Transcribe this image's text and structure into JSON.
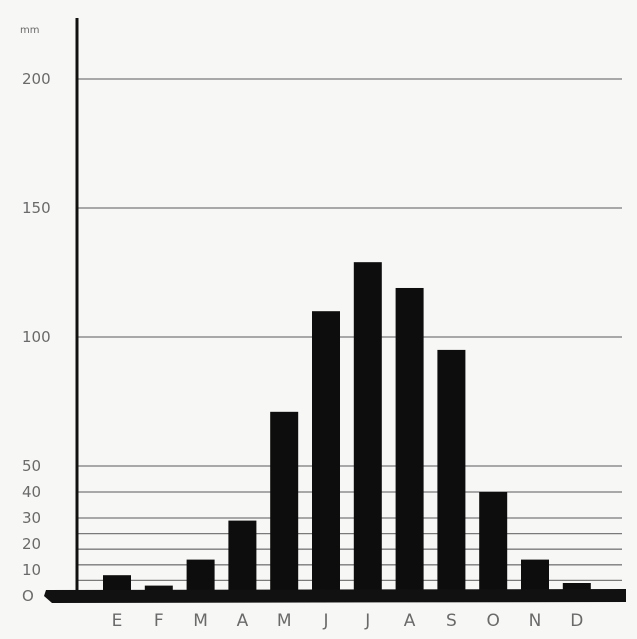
{
  "chart_data": {
    "type": "bar",
    "unit_label": "mm",
    "categories": [
      "E",
      "F",
      "M",
      "A",
      "M",
      "J",
      "J",
      "A",
      "S",
      "O",
      "N",
      "D"
    ],
    "values": [
      8,
      4,
      14,
      29,
      71,
      110,
      129,
      119,
      95,
      40,
      14,
      5
    ],
    "ylim": [
      0,
      200
    ],
    "yticks": [
      0,
      10,
      20,
      30,
      40,
      50,
      100,
      150,
      200
    ],
    "gridlines": [
      6,
      12,
      18,
      24,
      30,
      40,
      50,
      100,
      150,
      200
    ],
    "grid": true,
    "colors": {
      "bar": "#0d0d0d",
      "grid": "#7a7a7a",
      "axis": "#111111",
      "text": "#6a6a6a"
    }
  }
}
